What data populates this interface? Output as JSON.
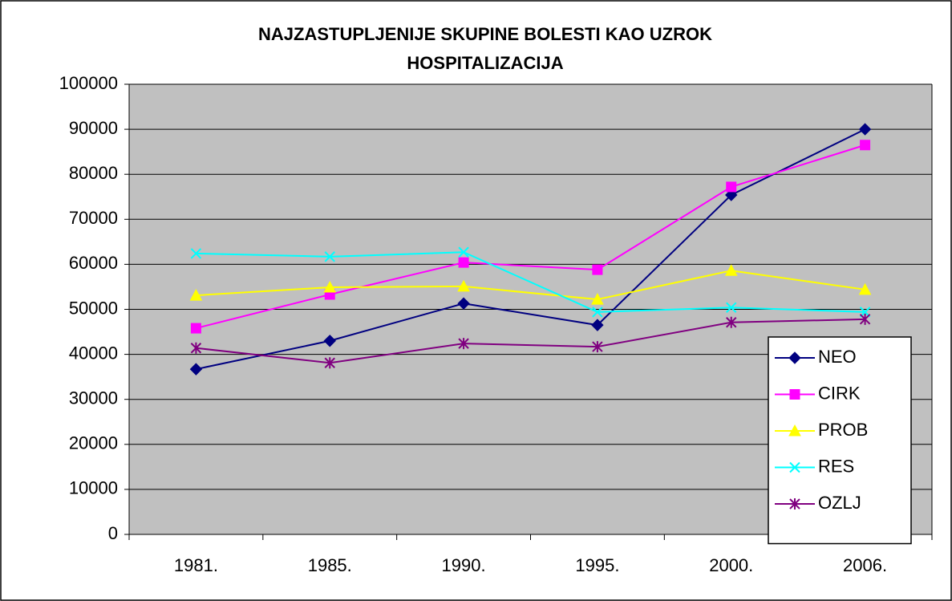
{
  "chart_data": {
    "type": "line",
    "title": [
      "NAJZASTUPLJENIJE SKUPINE BOLESTI KAO UZROK",
      "HOSPITALIZACIJA"
    ],
    "categories": [
      "1981.",
      "1985.",
      "1990.",
      "1995.",
      "2000.",
      "2006."
    ],
    "series": [
      {
        "name": "NEO",
        "color": "#000080",
        "marker": "diamond",
        "values": [
          36700,
          43000,
          51300,
          46500,
          75400,
          90000
        ]
      },
      {
        "name": "CIRK",
        "color": "#ff00ff",
        "marker": "square",
        "values": [
          45800,
          53300,
          60400,
          58800,
          77200,
          86500
        ]
      },
      {
        "name": "PROB",
        "color": "#ffff00",
        "marker": "triangle",
        "values": [
          53100,
          54900,
          55100,
          52200,
          58600,
          54400
        ]
      },
      {
        "name": "RES",
        "color": "#00ffff",
        "marker": "x",
        "values": [
          62400,
          61700,
          62700,
          49400,
          50400,
          49400
        ]
      },
      {
        "name": "OZLJ",
        "color": "#800080",
        "marker": "asterisk",
        "values": [
          41400,
          38100,
          42400,
          41700,
          47100,
          47800
        ]
      }
    ],
    "ylim": [
      0,
      100000
    ],
    "yticks": [
      0,
      10000,
      20000,
      30000,
      40000,
      50000,
      60000,
      70000,
      80000,
      90000,
      100000
    ],
    "grid": true,
    "legend": "right"
  }
}
